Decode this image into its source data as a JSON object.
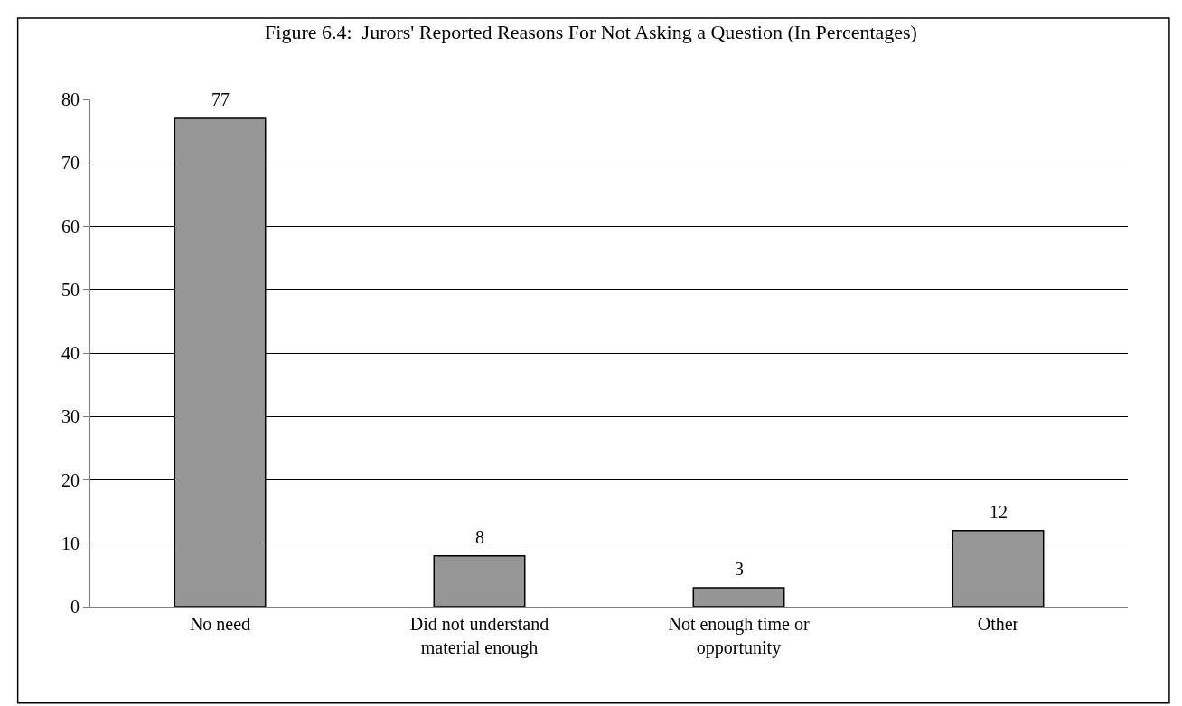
{
  "chart_data": {
    "type": "bar",
    "title": "Figure 6.4:  Jurors' Reported Reasons For Not Asking a Question (In Percentages)",
    "categories": [
      "No need",
      "Did not understand material enough",
      "Not enough time or opportunity",
      "Other"
    ],
    "values": [
      77,
      8,
      3,
      12
    ],
    "color": "#969696",
    "ylim": [
      0,
      80
    ],
    "yticks": [
      0,
      10,
      20,
      30,
      40,
      50,
      60,
      70,
      80
    ],
    "grid": "y",
    "data_labels": true
  }
}
